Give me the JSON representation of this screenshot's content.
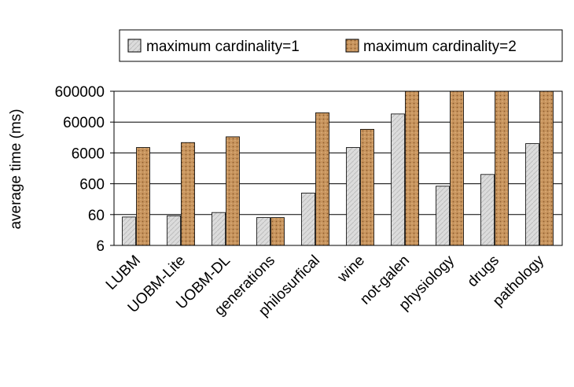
{
  "chart_data": {
    "type": "bar",
    "categories": [
      "LUBM",
      "UOBM-Lite",
      "UOBM-DL",
      "generations",
      "philosurfical",
      "wine",
      "not-galen",
      "physiology",
      "drugs",
      "pathology"
    ],
    "series": [
      {
        "name": "maximum cardinality=1",
        "values": [
          50,
          55,
          70,
          48,
          300,
          9000,
          110000,
          500,
          1200,
          12000
        ]
      },
      {
        "name": "maximum cardinality=2",
        "values": [
          9000,
          13000,
          20000,
          48,
          120000,
          35000,
          600000,
          600000,
          600000,
          600000
        ]
      }
    ],
    "xlabel": "",
    "ylabel": "average time (ms)",
    "yscale": "log",
    "ylim": [
      6,
      600000
    ],
    "yticks": [
      6,
      60,
      600,
      6000,
      60000,
      600000
    ],
    "ytick_labels": [
      "6",
      "60",
      "600",
      "6000",
      "60000",
      "600000"
    ],
    "grid": "horizontal",
    "legend_position": "top",
    "colors": {
      "series1_fill": "#dcdcdc",
      "series1_texture": "#bdbdbd",
      "series2_fill": "#c8955e",
      "series2_texture": "#8b5a2b",
      "outline": "#000000"
    }
  }
}
